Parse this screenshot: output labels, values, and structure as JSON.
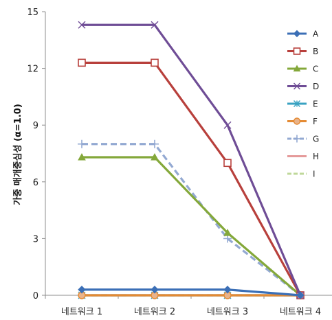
{
  "chart_data": {
    "type": "line",
    "title": "",
    "xlabel": "",
    "ylabel": "가중 매개중심성 (α=1.0)",
    "categories": [
      "네트워크 1",
      "네트워크 2",
      "네트워크 3",
      "네트워크 4"
    ],
    "ylim": [
      0,
      15
    ],
    "yticks": [
      0,
      3,
      6,
      9,
      12,
      15
    ],
    "grid": false,
    "legend_position": "right",
    "series": [
      {
        "name": "A",
        "values": [
          0.3,
          0.3,
          0.3,
          0
        ],
        "color": "#3b6fb6",
        "marker": "diamond",
        "dash": false
      },
      {
        "name": "B",
        "values": [
          12.3,
          12.3,
          7.0,
          0
        ],
        "color": "#b8403c",
        "marker": "square-open",
        "dash": false
      },
      {
        "name": "C",
        "values": [
          7.3,
          7.3,
          3.3,
          0
        ],
        "color": "#84a83a",
        "marker": "triangle",
        "dash": false
      },
      {
        "name": "D",
        "values": [
          14.3,
          14.3,
          9.0,
          0
        ],
        "color": "#6f4d96",
        "marker": "x",
        "dash": false
      },
      {
        "name": "E",
        "values": [
          0,
          0,
          0,
          0
        ],
        "color": "#38a2c2",
        "marker": "star",
        "dash": false
      },
      {
        "name": "F",
        "values": [
          0,
          0,
          0,
          0
        ],
        "color": "#e48a33",
        "marker": "circle",
        "dash": false
      },
      {
        "name": "G",
        "values": [
          8.0,
          8.0,
          3.0,
          0
        ],
        "color": "#93a9d2",
        "marker": "plus",
        "dash": true
      },
      {
        "name": "H",
        "values": [
          0,
          0,
          0,
          0
        ],
        "color": "#e59a9a",
        "marker": "none",
        "dash": false
      },
      {
        "name": "I",
        "values": [
          0,
          0,
          0,
          0
        ],
        "color": "#bfd89a",
        "marker": "none",
        "dash": true
      }
    ]
  }
}
